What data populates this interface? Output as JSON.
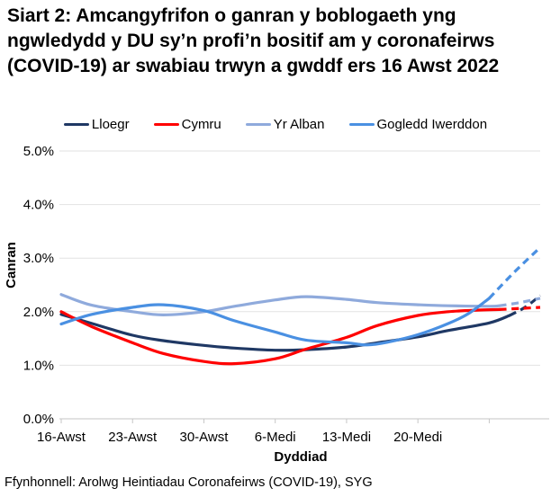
{
  "title": "Siart 2: Amcangyfrifon o ganran y boblogaeth yng ngwledydd y DU sy’n profi’n bositif am y coronafeirws (COVID-19) ar swabiau trwyn a gwddf ers 16 Awst 2022",
  "source": "Ffynhonnell: Arolwg Heintiadau Coronafeirws (COVID-19), SYG",
  "chart_data": {
    "type": "line",
    "xlabel": "Dyddiad",
    "ylabel": "Canran",
    "x_unit": "days since 16 Awst 2022",
    "xlim": [
      0,
      47
    ],
    "ylim": [
      0,
      5
    ],
    "grid": "horizontal",
    "legend_position": "top",
    "line_style_note": "final segment dashed = provisional estimates",
    "colors": {
      "grid": "#E2E2E2",
      "axis": "#C6C6C6"
    },
    "yticks": [
      {
        "v": 0,
        "label": "0.0%"
      },
      {
        "v": 1,
        "label": "1.0%"
      },
      {
        "v": 2,
        "label": "2.0%"
      },
      {
        "v": 3,
        "label": "3.0%"
      },
      {
        "v": 4,
        "label": "4.0%"
      },
      {
        "v": 5,
        "label": "5.0%"
      }
    ],
    "xticks": [
      {
        "d": 0,
        "label": "16-Awst"
      },
      {
        "d": 7,
        "label": "23-Awst"
      },
      {
        "d": 14,
        "label": "30-Awst"
      },
      {
        "d": 21,
        "label": "6-Medi"
      },
      {
        "d": 28,
        "label": "13-Medi"
      },
      {
        "d": 35,
        "label": "20-Medi"
      },
      {
        "d": 42,
        "label": ""
      }
    ],
    "series": [
      {
        "name": "Lloegr",
        "color": "#1F3864",
        "dash_from_day": 44,
        "points": [
          [
            0,
            1.95
          ],
          [
            3,
            1.78
          ],
          [
            7,
            1.56
          ],
          [
            10,
            1.46
          ],
          [
            14,
            1.37
          ],
          [
            17,
            1.32
          ],
          [
            21,
            1.28
          ],
          [
            24,
            1.29
          ],
          [
            28,
            1.34
          ],
          [
            31,
            1.42
          ],
          [
            35,
            1.53
          ],
          [
            38,
            1.65
          ],
          [
            42,
            1.79
          ],
          [
            44,
            1.93
          ],
          [
            45.5,
            2.08
          ],
          [
            47,
            2.3
          ]
        ]
      },
      {
        "name": "Cymru",
        "color": "#FF0000",
        "dash_from_day": 43,
        "points": [
          [
            0,
            2.0
          ],
          [
            3,
            1.72
          ],
          [
            7,
            1.42
          ],
          [
            10,
            1.22
          ],
          [
            14,
            1.07
          ],
          [
            17,
            1.03
          ],
          [
            21,
            1.12
          ],
          [
            24,
            1.3
          ],
          [
            28,
            1.52
          ],
          [
            31,
            1.74
          ],
          [
            35,
            1.93
          ],
          [
            38,
            2.0
          ],
          [
            41,
            2.03
          ],
          [
            43,
            2.04
          ],
          [
            45,
            2.06
          ],
          [
            47,
            2.08
          ]
        ]
      },
      {
        "name": "Yr Alban",
        "color": "#8FAADC",
        "dash_from_day": 43,
        "points": [
          [
            0,
            2.32
          ],
          [
            3,
            2.12
          ],
          [
            7,
            2.0
          ],
          [
            10,
            1.94
          ],
          [
            14,
            2.0
          ],
          [
            17,
            2.1
          ],
          [
            21,
            2.22
          ],
          [
            24,
            2.28
          ],
          [
            28,
            2.23
          ],
          [
            31,
            2.17
          ],
          [
            35,
            2.13
          ],
          [
            38,
            2.11
          ],
          [
            42,
            2.1
          ],
          [
            43,
            2.11
          ],
          [
            45,
            2.17
          ],
          [
            47,
            2.25
          ]
        ]
      },
      {
        "name": "Gogledd Iwerddon",
        "color": "#4A90E2",
        "dash_from_day": 42,
        "points": [
          [
            0,
            1.77
          ],
          [
            3,
            1.95
          ],
          [
            7,
            2.08
          ],
          [
            10,
            2.13
          ],
          [
            14,
            2.02
          ],
          [
            17,
            1.83
          ],
          [
            21,
            1.62
          ],
          [
            24,
            1.47
          ],
          [
            28,
            1.42
          ],
          [
            30,
            1.38
          ],
          [
            32,
            1.43
          ],
          [
            35,
            1.57
          ],
          [
            38,
            1.78
          ],
          [
            40,
            1.97
          ],
          [
            42,
            2.25
          ],
          [
            44,
            2.65
          ],
          [
            45.5,
            2.93
          ],
          [
            47,
            3.2
          ]
        ]
      }
    ]
  }
}
